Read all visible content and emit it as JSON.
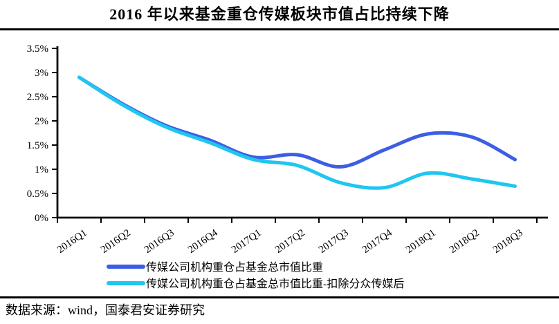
{
  "title": "2016 年以来基金重仓传媒板块市值占比持续下降",
  "source_note": "数据来源：wind，国泰君安证券研究",
  "colors": {
    "series_media": "#3c5ee4",
    "series_media_ex_focus": "#1fc6f0",
    "axis": "#000000"
  },
  "chart_data": {
    "type": "line",
    "title": "2016 年以来基金重仓传媒板块市值占比持续下降",
    "categories": [
      "2016Q1",
      "2016Q2",
      "2016Q3",
      "2016Q4",
      "2017Q1",
      "2017Q2",
      "2017Q3",
      "2017Q4",
      "2018Q1",
      "2018Q2",
      "2018Q3"
    ],
    "series": [
      {
        "name": "传媒公司机构重仓占基金总市值比重",
        "color": "#3c5ee4",
        "values": [
          2.9,
          2.35,
          1.9,
          1.6,
          1.25,
          1.3,
          1.05,
          1.4,
          1.73,
          1.67,
          1.2
        ]
      },
      {
        "name": "传媒公司机构重仓占基金总市值比重-扣除分众传媒后",
        "color": "#1fc6f0",
        "values": [
          2.9,
          2.33,
          1.87,
          1.55,
          1.2,
          1.08,
          0.72,
          0.62,
          0.92,
          0.8,
          0.65
        ]
      }
    ],
    "xlabel": "",
    "ylabel": "",
    "ylim": [
      0,
      3.5
    ],
    "y_tick_values": [
      0,
      0.5,
      1,
      1.5,
      2,
      2.5,
      3,
      3.5
    ],
    "y_tick_labels": [
      "0%",
      "0.5%",
      "1%",
      "1.5%",
      "2%",
      "2.5%",
      "3%",
      "3.5%"
    ],
    "grid": false,
    "legend_position": "bottom-left"
  }
}
